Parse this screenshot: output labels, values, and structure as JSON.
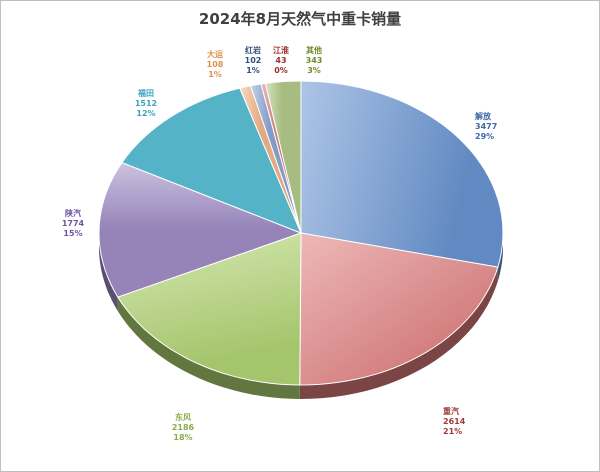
{
  "chart_data": {
    "type": "pie",
    "title": "2024年8月天然气中重卡销量",
    "categories": [
      "解放",
      "重汽",
      "东风",
      "陕汽",
      "福田",
      "大运",
      "红岩",
      "江淮",
      "其他"
    ],
    "values": [
      3477,
      2614,
      2186,
      1774,
      1512,
      108,
      102,
      43,
      343
    ],
    "percent_labels": [
      "29%",
      "21%",
      "18%",
      "15%",
      "12%",
      "1%",
      "1%",
      "0%",
      "3%"
    ],
    "value_labels": [
      "3477",
      "2614",
      "2186",
      "1774",
      "1512",
      "108",
      "102",
      "43",
      "343"
    ],
    "colors": [
      "#6a96d3",
      "#e07e7e",
      "#b3d675",
      "#a390c9",
      "#5cc3d9",
      "#f6b98e",
      "#8eaad8",
      "#d88585",
      "#b6cc8c"
    ],
    "label_colors": [
      "#3d6aa8",
      "#a03a3a",
      "#8aae4a",
      "#6b56a0",
      "#3ba4bd",
      "#e08f4a",
      "#2f4f7f",
      "#9a2d2d",
      "#6f8a2a"
    ],
    "style": "3d-pie",
    "legend": "none"
  }
}
